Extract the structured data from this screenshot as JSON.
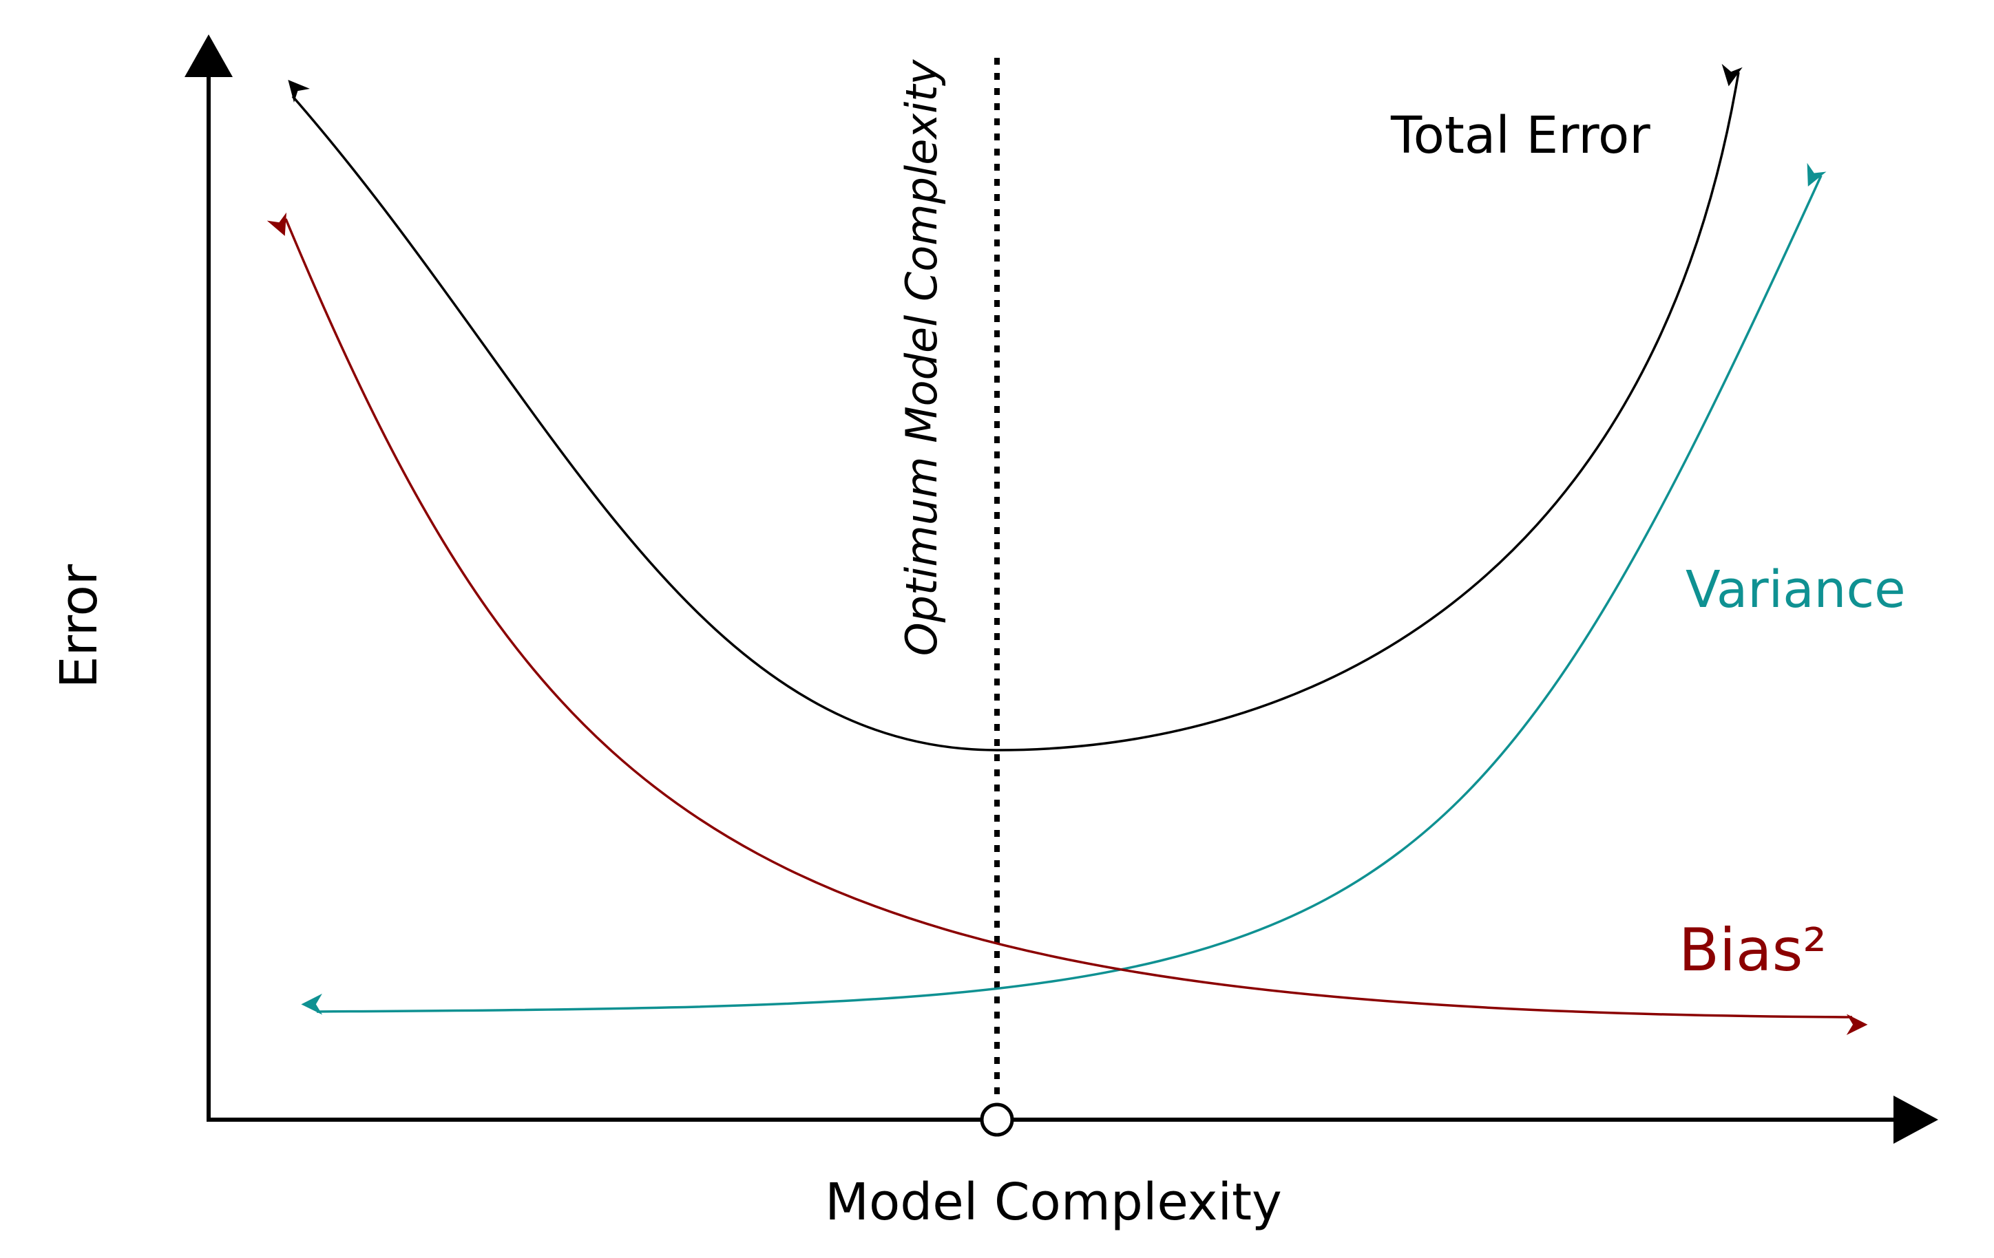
{
  "axes": {
    "x_label": "Model Complexity",
    "y_label": "Error"
  },
  "optimum": {
    "label": "Optimum Model Complexity"
  },
  "curves": {
    "total_error": {
      "label": "Total Error",
      "color": "#000000"
    },
    "variance": {
      "label": "Variance",
      "color": "#0f9192"
    },
    "bias": {
      "label": "Bias²",
      "color": "#8b0000"
    }
  }
}
